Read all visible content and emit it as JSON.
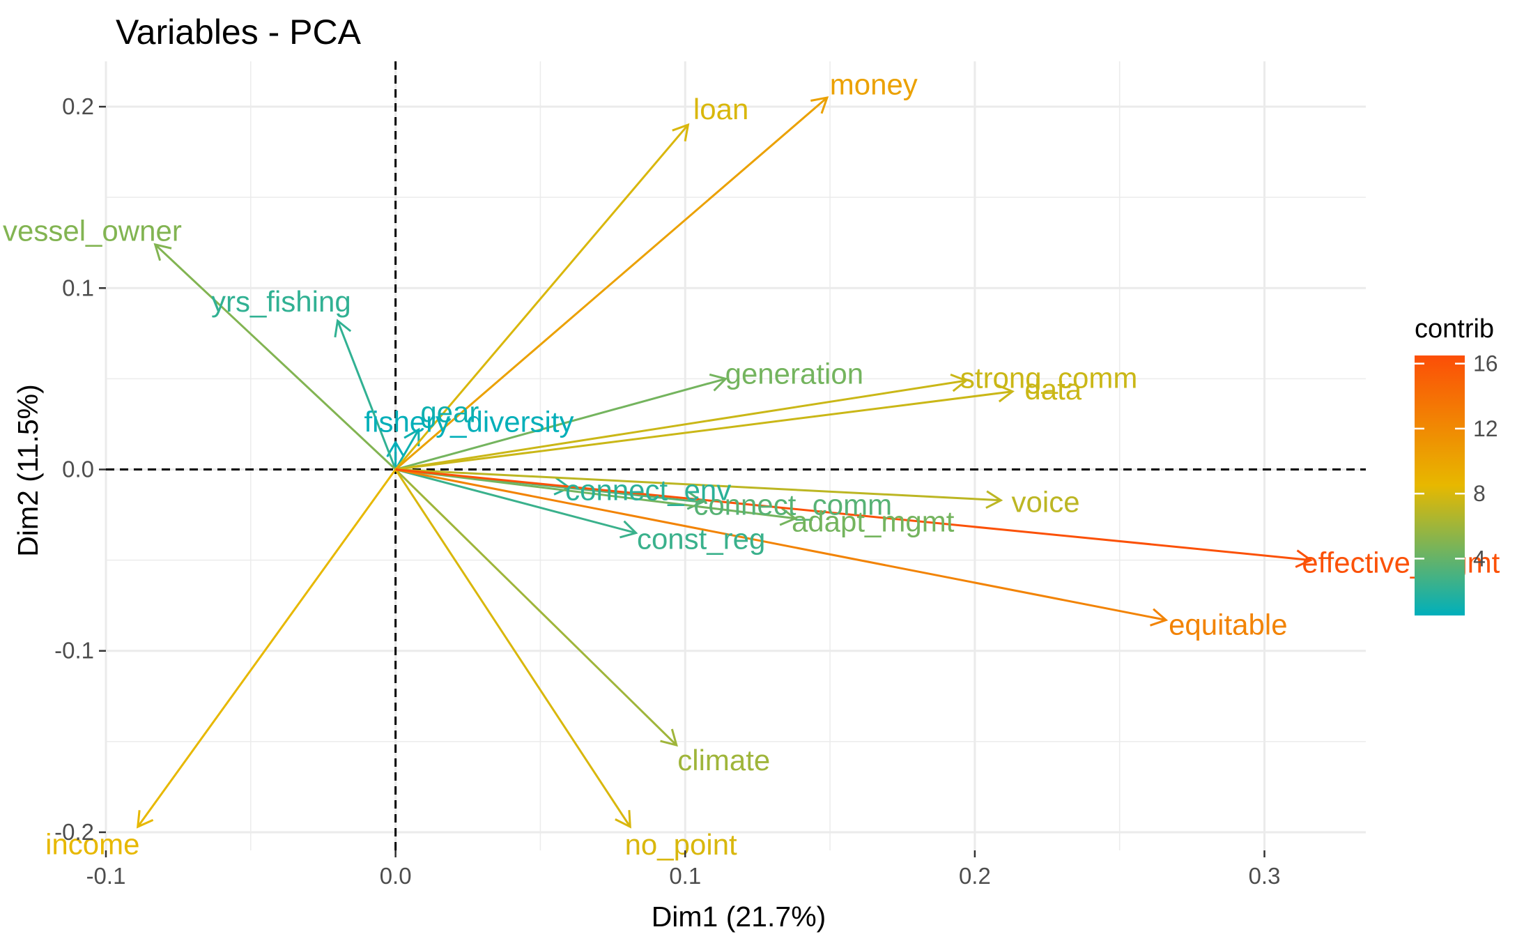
{
  "chart_data": {
    "type": "scatter",
    "subtype": "pca-variable-correlation-arrows",
    "title": "Variables - PCA",
    "xlabel": "Dim1 (21.7%)",
    "ylabel": "Dim2 (11.5%)",
    "xlim": [
      -0.1,
      0.335
    ],
    "ylim": [
      -0.21,
      0.225
    ],
    "xticks": [
      -0.1,
      0.0,
      0.1,
      0.2,
      0.3
    ],
    "xtick_labels": [
      "-0.1",
      "0.0",
      "0.1",
      "0.2",
      "0.3"
    ],
    "yticks": [
      -0.2,
      -0.1,
      0.0,
      0.1,
      0.2
    ],
    "ytick_labels": [
      "-0.2",
      "-0.1",
      "0.0",
      "0.1",
      "0.2"
    ],
    "grid": true,
    "reference_lines": {
      "x": 0,
      "y": 0,
      "style": "dashed"
    },
    "legend": {
      "title": "contrib",
      "placement": "right",
      "ticks": [
        4,
        8,
        12,
        16
      ],
      "range": [
        0.5,
        16.5
      ],
      "colors": [
        "#00AFBB",
        "#E7B800",
        "#FC4E07"
      ]
    },
    "variables": [
      {
        "name": "money",
        "x": 0.149,
        "y": 0.205,
        "contrib": 10.2
      },
      {
        "name": "loan",
        "x": 0.101,
        "y": 0.19,
        "contrib": 8.0
      },
      {
        "name": "vessel_owner",
        "x": -0.083,
        "y": 0.124,
        "contrib": 5.0
      },
      {
        "name": "yrs_fishing",
        "x": -0.02,
        "y": 0.082,
        "contrib": 2.2
      },
      {
        "name": "gear",
        "x": 0.008,
        "y": 0.022,
        "contrib": 1.0
      },
      {
        "name": "fishery_diversity",
        "x": 0.0,
        "y": 0.015,
        "contrib": 0.6
      },
      {
        "name": "generation",
        "x": 0.114,
        "y": 0.05,
        "contrib": 4.5
      },
      {
        "name": "strong_comm",
        "x": 0.197,
        "y": 0.049,
        "contrib": 7.5
      },
      {
        "name": "data",
        "x": 0.213,
        "y": 0.043,
        "contrib": 7.5
      },
      {
        "name": "connect_env",
        "x": 0.06,
        "y": -0.01,
        "contrib": 2.0
      },
      {
        "name": "connect_comm",
        "x": 0.106,
        "y": -0.018,
        "contrib": 3.5
      },
      {
        "name": "voice",
        "x": 0.209,
        "y": -0.017,
        "contrib": 7.0
      },
      {
        "name": "adapt_mgmt",
        "x": 0.138,
        "y": -0.027,
        "contrib": 4.5
      },
      {
        "name": "const_reg",
        "x": 0.083,
        "y": -0.035,
        "contrib": 2.5
      },
      {
        "name": "effective_mgmt",
        "x": 0.316,
        "y": -0.05,
        "contrib": 16.3
      },
      {
        "name": "equitable",
        "x": 0.266,
        "y": -0.083,
        "contrib": 12.5
      },
      {
        "name": "climate",
        "x": 0.097,
        "y": -0.152,
        "contrib": 6.0
      },
      {
        "name": "no_point",
        "x": 0.081,
        "y": -0.197,
        "contrib": 8.0
      },
      {
        "name": "income",
        "x": -0.089,
        "y": -0.197,
        "contrib": 8.5
      }
    ]
  }
}
